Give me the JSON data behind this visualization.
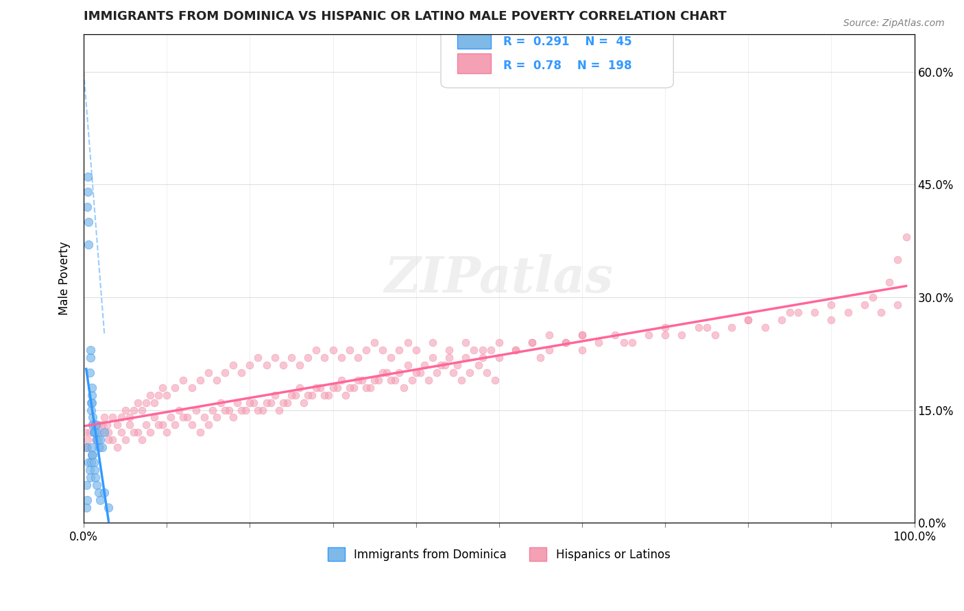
{
  "title": "IMMIGRANTS FROM DOMINICA VS HISPANIC OR LATINO MALE POVERTY CORRELATION CHART",
  "source_text": "Source: ZipAtlas.com",
  "xlabel": "",
  "ylabel": "Male Poverty",
  "legend_labels": [
    "Immigrants from Dominica",
    "Hispanics or Latinos"
  ],
  "legend_r": [
    0.291,
    0.78
  ],
  "legend_n": [
    45,
    198
  ],
  "blue_color": "#7EB9E8",
  "pink_color": "#F4A0B5",
  "blue_line_color": "#3399FF",
  "pink_line_color": "#FF6699",
  "watermark": "ZIPatlas",
  "xlim": [
    0.0,
    1.0
  ],
  "ylim": [
    0.0,
    0.65
  ],
  "yticks": [
    0.0,
    0.15,
    0.3,
    0.45,
    0.6
  ],
  "ytick_labels": [
    "0.0%",
    "15.0%",
    "30.0%",
    "45.0%",
    "60.0%"
  ],
  "xticks": [
    0.0,
    0.1,
    0.2,
    0.3,
    0.4,
    0.5,
    0.6,
    0.7,
    0.8,
    0.9,
    1.0
  ],
  "xtick_labels": [
    "0.0%",
    "",
    "",
    "",
    "",
    "",
    "",
    "",
    "",
    "",
    "100.0%"
  ],
  "blue_x": [
    0.003,
    0.003,
    0.004,
    0.005,
    0.005,
    0.006,
    0.006,
    0.007,
    0.008,
    0.008,
    0.009,
    0.009,
    0.01,
    0.01,
    0.01,
    0.011,
    0.011,
    0.012,
    0.013,
    0.014,
    0.015,
    0.015,
    0.016,
    0.017,
    0.018,
    0.02,
    0.022,
    0.025,
    0.003,
    0.004,
    0.006,
    0.007,
    0.008,
    0.009,
    0.01,
    0.01,
    0.011,
    0.012,
    0.013,
    0.014,
    0.016,
    0.018,
    0.02,
    0.025,
    0.03
  ],
  "blue_y": [
    0.05,
    0.1,
    0.42,
    0.44,
    0.46,
    0.37,
    0.4,
    0.2,
    0.22,
    0.23,
    0.15,
    0.16,
    0.16,
    0.17,
    0.18,
    0.13,
    0.14,
    0.12,
    0.12,
    0.13,
    0.12,
    0.13,
    0.11,
    0.11,
    0.1,
    0.11,
    0.1,
    0.12,
    0.02,
    0.03,
    0.08,
    0.07,
    0.06,
    0.08,
    0.09,
    0.1,
    0.09,
    0.08,
    0.07,
    0.06,
    0.05,
    0.04,
    0.03,
    0.04,
    0.02
  ],
  "pink_x": [
    0.002,
    0.003,
    0.005,
    0.007,
    0.01,
    0.012,
    0.015,
    0.018,
    0.02,
    0.022,
    0.025,
    0.028,
    0.03,
    0.035,
    0.04,
    0.045,
    0.05,
    0.055,
    0.06,
    0.065,
    0.07,
    0.075,
    0.08,
    0.085,
    0.09,
    0.095,
    0.1,
    0.11,
    0.12,
    0.13,
    0.14,
    0.15,
    0.16,
    0.17,
    0.18,
    0.19,
    0.2,
    0.21,
    0.22,
    0.23,
    0.24,
    0.25,
    0.26,
    0.27,
    0.28,
    0.29,
    0.3,
    0.31,
    0.32,
    0.33,
    0.34,
    0.35,
    0.36,
    0.37,
    0.38,
    0.39,
    0.4,
    0.42,
    0.44,
    0.46,
    0.48,
    0.5,
    0.52,
    0.54,
    0.56,
    0.58,
    0.6,
    0.62,
    0.64,
    0.66,
    0.68,
    0.7,
    0.72,
    0.74,
    0.76,
    0.78,
    0.8,
    0.82,
    0.84,
    0.86,
    0.88,
    0.9,
    0.92,
    0.94,
    0.96,
    0.98,
    0.005,
    0.015,
    0.025,
    0.035,
    0.045,
    0.055,
    0.065,
    0.075,
    0.085,
    0.095,
    0.105,
    0.115,
    0.125,
    0.135,
    0.145,
    0.155,
    0.165,
    0.175,
    0.185,
    0.195,
    0.205,
    0.215,
    0.225,
    0.235,
    0.245,
    0.255,
    0.265,
    0.275,
    0.285,
    0.295,
    0.305,
    0.315,
    0.325,
    0.335,
    0.345,
    0.355,
    0.365,
    0.375,
    0.385,
    0.395,
    0.405,
    0.415,
    0.425,
    0.435,
    0.445,
    0.455,
    0.465,
    0.475,
    0.485,
    0.495,
    0.55,
    0.6,
    0.65,
    0.7,
    0.75,
    0.8,
    0.85,
    0.9,
    0.95,
    0.97,
    0.98,
    0.99,
    0.01,
    0.02,
    0.03,
    0.04,
    0.05,
    0.06,
    0.07,
    0.08,
    0.09,
    0.1,
    0.11,
    0.12,
    0.13,
    0.14,
    0.15,
    0.16,
    0.17,
    0.18,
    0.19,
    0.2,
    0.21,
    0.22,
    0.23,
    0.24,
    0.25,
    0.26,
    0.27,
    0.28,
    0.29,
    0.3,
    0.31,
    0.32,
    0.33,
    0.34,
    0.35,
    0.36,
    0.37,
    0.38,
    0.39,
    0.4,
    0.41,
    0.42,
    0.43,
    0.44,
    0.45,
    0.46,
    0.47,
    0.48,
    0.49,
    0.5,
    0.52,
    0.54,
    0.56,
    0.58,
    0.6
  ],
  "pink_y": [
    0.12,
    0.1,
    0.11,
    0.12,
    0.13,
    0.12,
    0.11,
    0.13,
    0.12,
    0.13,
    0.14,
    0.13,
    0.12,
    0.14,
    0.13,
    0.14,
    0.15,
    0.14,
    0.15,
    0.16,
    0.15,
    0.16,
    0.17,
    0.16,
    0.17,
    0.18,
    0.17,
    0.18,
    0.19,
    0.18,
    0.19,
    0.2,
    0.19,
    0.2,
    0.21,
    0.2,
    0.21,
    0.22,
    0.21,
    0.22,
    0.21,
    0.22,
    0.21,
    0.22,
    0.23,
    0.22,
    0.23,
    0.22,
    0.23,
    0.22,
    0.23,
    0.24,
    0.23,
    0.22,
    0.23,
    0.24,
    0.23,
    0.24,
    0.23,
    0.24,
    0.23,
    0.24,
    0.23,
    0.24,
    0.25,
    0.24,
    0.25,
    0.24,
    0.25,
    0.24,
    0.25,
    0.26,
    0.25,
    0.26,
    0.25,
    0.26,
    0.27,
    0.26,
    0.27,
    0.28,
    0.28,
    0.27,
    0.28,
    0.29,
    0.28,
    0.29,
    0.1,
    0.11,
    0.12,
    0.11,
    0.12,
    0.13,
    0.12,
    0.13,
    0.14,
    0.13,
    0.14,
    0.15,
    0.14,
    0.15,
    0.14,
    0.15,
    0.16,
    0.15,
    0.16,
    0.15,
    0.16,
    0.15,
    0.16,
    0.15,
    0.16,
    0.17,
    0.16,
    0.17,
    0.18,
    0.17,
    0.18,
    0.17,
    0.18,
    0.19,
    0.18,
    0.19,
    0.2,
    0.19,
    0.18,
    0.19,
    0.2,
    0.19,
    0.2,
    0.21,
    0.2,
    0.19,
    0.2,
    0.21,
    0.2,
    0.19,
    0.22,
    0.23,
    0.24,
    0.25,
    0.26,
    0.27,
    0.28,
    0.29,
    0.3,
    0.32,
    0.35,
    0.38,
    0.09,
    0.1,
    0.11,
    0.1,
    0.11,
    0.12,
    0.11,
    0.12,
    0.13,
    0.12,
    0.13,
    0.14,
    0.13,
    0.12,
    0.13,
    0.14,
    0.15,
    0.14,
    0.15,
    0.16,
    0.15,
    0.16,
    0.17,
    0.16,
    0.17,
    0.18,
    0.17,
    0.18,
    0.17,
    0.18,
    0.19,
    0.18,
    0.19,
    0.18,
    0.19,
    0.2,
    0.19,
    0.2,
    0.21,
    0.2,
    0.21,
    0.22,
    0.21,
    0.22,
    0.21,
    0.22,
    0.23,
    0.22,
    0.23,
    0.22,
    0.23,
    0.24,
    0.23,
    0.24,
    0.25
  ]
}
